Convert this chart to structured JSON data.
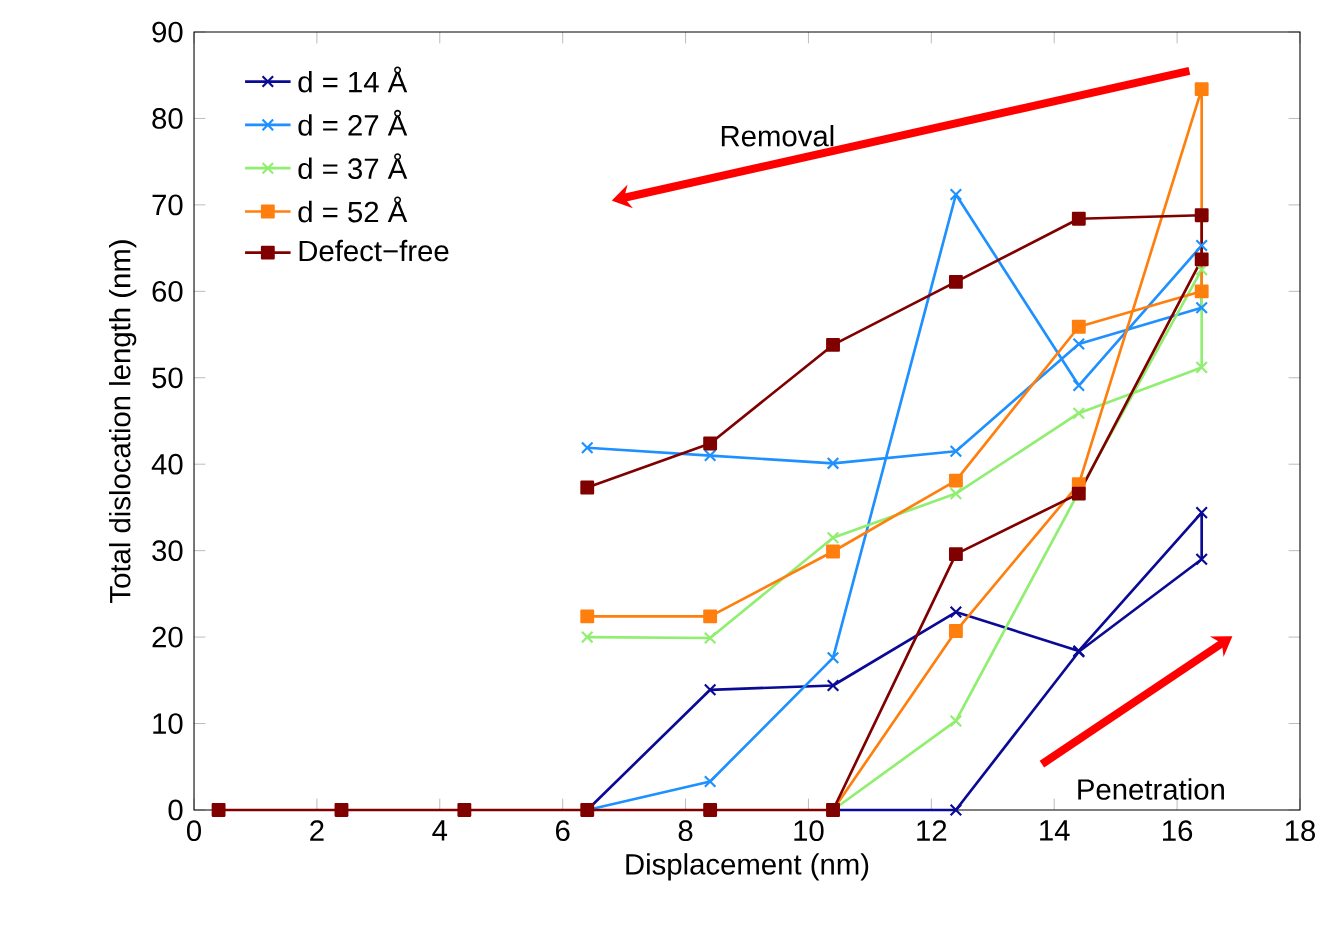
{
  "chart_data": {
    "type": "line",
    "xlabel": "Displacement (nm)",
    "ylabel": "Total dislocation length (nm)",
    "xlim": [
      0,
      18
    ],
    "xticks": [
      0,
      2,
      4,
      6,
      8,
      10,
      12,
      14,
      16,
      18
    ],
    "ylim": [
      0,
      90
    ],
    "yticks": [
      0,
      10,
      20,
      30,
      40,
      50,
      60,
      70,
      80,
      90
    ],
    "grid": false,
    "legend": "top left",
    "line_style": "solid",
    "annotations": [
      "Removal",
      "Penetration"
    ],
    "series": [
      {
        "name": "d = 14 Å",
        "color": "#0a0a96",
        "marker": "cross",
        "x": [
          6.4,
          8.4,
          10.4,
          12.4,
          14.4,
          16.4,
          16.4,
          14.4,
          12.4,
          10.4
        ],
        "values": [
          0,
          13.9,
          14.4,
          22.9,
          18.4,
          34.4,
          29,
          18.3,
          0,
          0
        ]
      },
      {
        "name": "d = 27 Å",
        "color": "#1e90ff",
        "marker": "cross",
        "x": [
          6.4,
          8.4,
          10.4,
          12.4,
          14.4,
          16.4,
          16.4,
          14.4,
          12.4,
          10.4,
          8.4,
          6.4
        ],
        "values": [
          0,
          3.3,
          17.6,
          71.2,
          49.1,
          65.3,
          58.1,
          53.9,
          41.5,
          40.1,
          41.0,
          41.9
        ]
      },
      {
        "name": "d = 37 Å",
        "color": "#90ee70",
        "marker": "cross",
        "x": [
          10.4,
          12.4,
          14.4,
          16.4,
          16.4,
          14.4,
          12.4,
          10.4,
          8.4,
          6.4
        ],
        "values": [
          0,
          10.3,
          36.8,
          62.5,
          51.2,
          45.9,
          36.6,
          31.5,
          19.9,
          20.0
        ]
      },
      {
        "name": "d = 52 Å",
        "color": "#ff7f0e",
        "marker": "square",
        "x": [
          10.4,
          12.4,
          14.4,
          16.4,
          16.4,
          14.4,
          12.4,
          10.4,
          8.4,
          6.4
        ],
        "values": [
          0,
          20.7,
          37.7,
          83.4,
          60.0,
          55.9,
          38.1,
          29.9,
          22.4,
          22.4
        ]
      },
      {
        "name": "Defect−free",
        "color": "#800000",
        "marker": "square",
        "x": [
          0.4,
          2.4,
          4.4,
          6.4,
          8.4,
          10.4,
          12.4,
          14.4,
          16.4,
          16.4,
          14.4,
          12.4,
          10.4,
          8.4,
          6.4
        ],
        "values": [
          0,
          0,
          0,
          0,
          0,
          0,
          29.6,
          36.6,
          63.7,
          68.8,
          68.4,
          61.1,
          53.8,
          42.4,
          37.3
        ]
      }
    ]
  }
}
